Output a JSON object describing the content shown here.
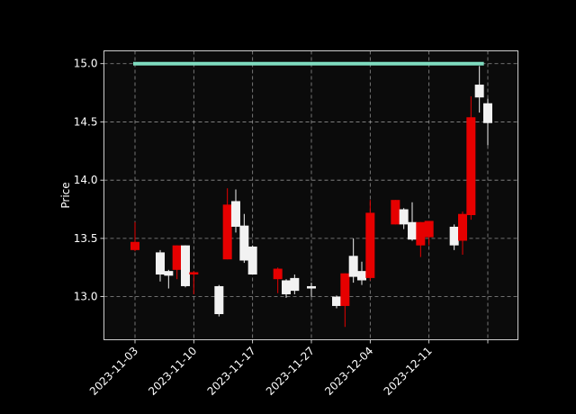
{
  "chart_data": {
    "type": "candlestick",
    "title": "",
    "xlabel": "",
    "ylabel": "Price",
    "ylim": [
      12.63,
      15.11
    ],
    "xlim": [
      "2023-11-03",
      "2023-12-15"
    ],
    "x_ticks": [
      "2023-11-03",
      "2023-11-10",
      "2023-11-17",
      "2023-11-27",
      "2023-12-04",
      "2023-12-11",
      ""
    ],
    "y_ticks": [
      13.0,
      13.5,
      14.0,
      14.5,
      15.0
    ],
    "grid": true,
    "colors": {
      "background": "#000000",
      "plot_background": "#0b0b0b",
      "up": "#f2f2f2",
      "down": "#e60000",
      "reference_line": "#7fdcc0",
      "grid": "#b0b0b0",
      "text": "#ffffff"
    },
    "reference_line": {
      "y": 15.0,
      "from": "2023-11-03",
      "to": "2023-12-14"
    },
    "candles": [
      {
        "date": "2023-11-03",
        "open": 13.47,
        "high": 13.64,
        "low": 13.39,
        "close": 13.4
      },
      {
        "date": "2023-11-06",
        "open": 13.19,
        "high": 13.4,
        "low": 13.13,
        "close": 13.38
      },
      {
        "date": "2023-11-07",
        "open": 13.18,
        "high": 13.23,
        "low": 13.07,
        "close": 13.22
      },
      {
        "date": "2023-11-08",
        "open": 13.44,
        "high": 13.44,
        "low": 13.15,
        "close": 13.23
      },
      {
        "date": "2023-11-09",
        "open": 13.09,
        "high": 13.44,
        "low": 13.08,
        "close": 13.44
      },
      {
        "date": "2023-11-10",
        "open": 13.21,
        "high": 13.22,
        "low": 13.02,
        "close": 13.19
      },
      {
        "date": "2023-11-13",
        "open": 12.85,
        "high": 13.1,
        "low": 12.83,
        "close": 13.09
      },
      {
        "date": "2023-11-14",
        "open": 13.79,
        "high": 13.93,
        "low": 13.32,
        "close": 13.32
      },
      {
        "date": "2023-11-15",
        "open": 13.6,
        "high": 13.92,
        "low": 13.55,
        "close": 13.82
      },
      {
        "date": "2023-11-16",
        "open": 13.31,
        "high": 13.71,
        "low": 13.29,
        "close": 13.61
      },
      {
        "date": "2023-11-17",
        "open": 13.19,
        "high": 13.44,
        "low": 13.19,
        "close": 13.43
      },
      {
        "date": "2023-11-20",
        "open": 13.24,
        "high": 13.25,
        "low": 13.03,
        "close": 13.15
      },
      {
        "date": "2023-11-21",
        "open": 13.02,
        "high": 13.15,
        "low": 12.99,
        "close": 13.14
      },
      {
        "date": "2023-11-22",
        "open": 13.05,
        "high": 13.19,
        "low": 13.02,
        "close": 13.16
      },
      {
        "date": "2023-11-24",
        "open": 13.07,
        "high": 13.12,
        "low": 13.0,
        "close": 13.09
      },
      {
        "date": "2023-11-27",
        "open": 12.92,
        "high": 13.01,
        "low": 12.9,
        "close": 13.0
      },
      {
        "date": "2023-11-28",
        "open": 13.2,
        "high": 13.2,
        "low": 12.74,
        "close": 12.92
      },
      {
        "date": "2023-11-29",
        "open": 13.17,
        "high": 13.5,
        "low": 13.12,
        "close": 13.35
      },
      {
        "date": "2023-11-30",
        "open": 13.14,
        "high": 13.3,
        "low": 13.1,
        "close": 13.22
      },
      {
        "date": "2023-12-01",
        "open": 13.72,
        "high": 13.83,
        "low": 13.14,
        "close": 13.16
      },
      {
        "date": "2023-12-04",
        "open": 13.83,
        "high": 13.83,
        "low": 13.62,
        "close": 13.62
      },
      {
        "date": "2023-12-05",
        "open": 13.62,
        "high": 13.76,
        "low": 13.58,
        "close": 13.75
      },
      {
        "date": "2023-12-06",
        "open": 13.49,
        "high": 13.81,
        "low": 13.48,
        "close": 13.64
      },
      {
        "date": "2023-12-07",
        "open": 13.64,
        "high": 13.64,
        "low": 13.34,
        "close": 13.44
      },
      {
        "date": "2023-12-08",
        "open": 13.65,
        "high": 13.65,
        "low": 13.44,
        "close": 13.51
      },
      {
        "date": "2023-12-11",
        "open": 13.44,
        "high": 13.62,
        "low": 13.4,
        "close": 13.6
      },
      {
        "date": "2023-12-12",
        "open": 13.71,
        "high": 13.73,
        "low": 13.36,
        "close": 13.48
      },
      {
        "date": "2023-12-13",
        "open": 14.54,
        "high": 14.72,
        "low": 13.66,
        "close": 13.7
      },
      {
        "date": "2023-12-14",
        "open": 14.71,
        "high": 14.98,
        "low": 14.58,
        "close": 14.82
      },
      {
        "date": "2023-12-15",
        "open": 14.49,
        "high": 14.7,
        "low": 14.3,
        "close": 14.66
      }
    ]
  }
}
